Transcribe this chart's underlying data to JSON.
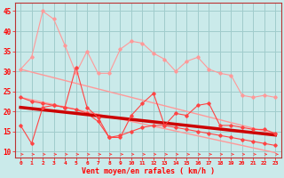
{
  "x": [
    0,
    1,
    2,
    3,
    4,
    5,
    6,
    7,
    8,
    9,
    10,
    11,
    12,
    13,
    14,
    15,
    16,
    17,
    18,
    19,
    20,
    21,
    22,
    23
  ],
  "upper_jagged": [
    30.5,
    33.5,
    45.0,
    43.0,
    36.5,
    29.5,
    35.0,
    29.5,
    29.5,
    35.5,
    37.5,
    37.0,
    34.5,
    33.0,
    30.0,
    32.5,
    33.5,
    30.5,
    29.5,
    29.0,
    24.0,
    23.5,
    24.0,
    23.5
  ],
  "lower_jagged": [
    16.5,
    12.0,
    21.0,
    21.5,
    21.0,
    31.0,
    21.0,
    18.5,
    13.5,
    13.5,
    19.0,
    22.0,
    24.5,
    16.5,
    19.5,
    19.0,
    21.5,
    22.0,
    16.5,
    16.5,
    16.0,
    15.5,
    15.5,
    14.5
  ],
  "lower_jagged2": [
    23.5,
    22.5,
    22.0,
    21.5,
    21.0,
    20.5,
    19.5,
    17.5,
    13.5,
    14.0,
    15.0,
    16.0,
    16.5,
    16.5,
    16.0,
    15.5,
    15.0,
    14.5,
    14.0,
    13.5,
    13.0,
    12.5,
    12.0,
    11.5
  ],
  "trend_upper": [
    30.5,
    29.8,
    29.1,
    28.4,
    27.7,
    27.0,
    26.3,
    25.6,
    24.9,
    24.2,
    23.5,
    22.8,
    22.1,
    21.4,
    20.7,
    20.0,
    19.3,
    18.6,
    17.9,
    17.2,
    16.5,
    15.8,
    15.1,
    14.4
  ],
  "trend_lower": [
    23.5,
    22.9,
    22.3,
    21.7,
    21.1,
    20.5,
    19.9,
    19.3,
    18.7,
    18.1,
    17.5,
    16.9,
    16.3,
    15.7,
    15.1,
    14.5,
    13.9,
    13.3,
    12.7,
    12.1,
    11.5,
    10.9,
    10.3,
    9.7
  ],
  "trend_main": [
    21.0,
    20.7,
    20.4,
    20.1,
    19.8,
    19.5,
    19.2,
    18.9,
    18.6,
    18.3,
    18.0,
    17.7,
    17.4,
    17.1,
    16.8,
    16.5,
    16.2,
    15.9,
    15.6,
    15.3,
    15.0,
    14.7,
    14.4,
    14.1
  ],
  "bg_color": "#caeaea",
  "grid_color": "#a0cccc",
  "color_light": "#ff9999",
  "color_mid": "#ff4444",
  "color_dark": "#cc0000",
  "xlabel": "Vent moyen/en rafales ( km/h )",
  "yticks": [
    10,
    15,
    20,
    25,
    30,
    35,
    40,
    45
  ],
  "xlim": [
    -0.5,
    23.5
  ],
  "ylim": [
    8.5,
    47
  ]
}
